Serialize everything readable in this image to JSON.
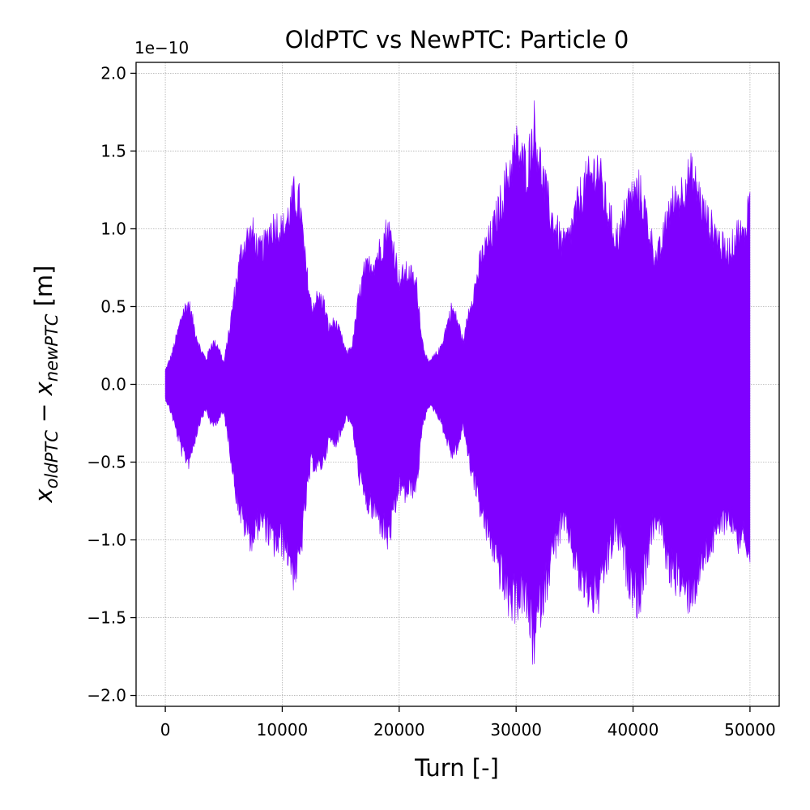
{
  "chart_data": {
    "type": "area",
    "title": "OldPTC vs NewPTC: Particle 0",
    "xlabel": "Turn [-]",
    "ylabel": {
      "var": "x",
      "sub1": "oldPTC",
      "minus": " − ",
      "sub2": "newPTC",
      "unit": " [m]"
    },
    "y_offset_label": "1e−10",
    "y_scale": 1e-10,
    "xlim": [
      -2500,
      52500
    ],
    "ylim": [
      -2.07,
      2.07
    ],
    "xticks": [
      0,
      10000,
      20000,
      30000,
      40000,
      50000
    ],
    "xtick_labels": [
      "0",
      "10000",
      "20000",
      "30000",
      "40000",
      "50000"
    ],
    "yticks": [
      -2.0,
      -1.5,
      -1.0,
      -0.5,
      0.0,
      0.5,
      1.0,
      1.5,
      2.0
    ],
    "ytick_labels": [
      "−2.0",
      "−1.5",
      "−1.0",
      "−0.5",
      "0.0",
      "0.5",
      "1.0",
      "1.5",
      "2.0"
    ],
    "grid": true,
    "series": [
      {
        "color": "#7f00ff",
        "envelope": {
          "turn": [
            0,
            500,
            1000,
            1500,
            2000,
            2500,
            3000,
            3500,
            4000,
            4500,
            5000,
            5500,
            6000,
            6500,
            7000,
            7500,
            8000,
            8500,
            9000,
            9500,
            10000,
            10500,
            11000,
            11500,
            12000,
            12500,
            13000,
            13500,
            14000,
            14500,
            15000,
            15500,
            16000,
            16500,
            17000,
            17500,
            18000,
            18500,
            19000,
            19500,
            20000,
            20500,
            21000,
            21500,
            22000,
            22500,
            23000,
            23500,
            24000,
            24500,
            25000,
            25500,
            26000,
            26500,
            27000,
            27500,
            28000,
            28500,
            29000,
            29500,
            30000,
            30500,
            31000,
            31500,
            32000,
            32500,
            33000,
            33500,
            34000,
            34500,
            35000,
            35500,
            36000,
            36500,
            37000,
            37500,
            38000,
            38500,
            39000,
            39500,
            40000,
            40500,
            41000,
            41500,
            42000,
            42500,
            43000,
            43500,
            44000,
            44500,
            45000,
            45500,
            46000,
            46500,
            47000,
            47500,
            48000,
            48500,
            49000,
            49500,
            50000
          ],
          "upper": [
            0.1,
            0.2,
            0.35,
            0.52,
            0.58,
            0.4,
            0.25,
            0.18,
            0.3,
            0.28,
            0.15,
            0.4,
            0.7,
            0.95,
            1.05,
            1.08,
            0.95,
            1.0,
            1.12,
            1.15,
            1.1,
            1.2,
            1.35,
            1.3,
            0.85,
            0.55,
            0.62,
            0.6,
            0.4,
            0.45,
            0.35,
            0.22,
            0.28,
            0.6,
            0.8,
            0.85,
            0.9,
            1.0,
            1.12,
            1.0,
            0.75,
            0.8,
            0.78,
            0.7,
            0.3,
            0.15,
            0.2,
            0.25,
            0.4,
            0.55,
            0.45,
            0.3,
            0.55,
            0.7,
            0.9,
            1.0,
            1.1,
            1.25,
            1.4,
            1.55,
            1.7,
            1.6,
            1.55,
            1.88,
            1.6,
            1.4,
            1.2,
            1.1,
            1.0,
            1.05,
            1.2,
            1.35,
            1.45,
            1.5,
            1.57,
            1.35,
            1.2,
            1.05,
            1.1,
            1.3,
            1.35,
            1.4,
            1.25,
            1.05,
            0.9,
            1.0,
            1.25,
            1.3,
            1.35,
            1.45,
            1.5,
            1.4,
            1.25,
            1.15,
            1.1,
            1.0,
            0.95,
            1.0,
            1.1,
            1.05,
            1.38
          ],
          "lower": [
            -0.1,
            -0.2,
            -0.35,
            -0.5,
            -0.55,
            -0.4,
            -0.25,
            -0.18,
            -0.3,
            -0.25,
            -0.2,
            -0.45,
            -0.75,
            -0.95,
            -1.05,
            -1.1,
            -0.98,
            -1.0,
            -1.1,
            -1.15,
            -1.12,
            -1.2,
            -1.35,
            -1.25,
            -0.85,
            -0.55,
            -0.6,
            -0.55,
            -0.4,
            -0.42,
            -0.35,
            -0.22,
            -0.3,
            -0.62,
            -0.8,
            -0.88,
            -0.92,
            -1.0,
            -1.1,
            -0.98,
            -0.72,
            -0.78,
            -0.75,
            -0.72,
            -0.3,
            -0.15,
            -0.18,
            -0.25,
            -0.38,
            -0.5,
            -0.45,
            -0.3,
            -0.55,
            -0.72,
            -0.9,
            -1.05,
            -1.15,
            -1.3,
            -1.45,
            -1.55,
            -1.55,
            -1.5,
            -1.6,
            -1.88,
            -1.6,
            -1.45,
            -1.25,
            -1.1,
            -1.0,
            -1.05,
            -1.25,
            -1.4,
            -1.45,
            -1.5,
            -1.52,
            -1.35,
            -1.2,
            -1.05,
            -1.15,
            -1.35,
            -1.45,
            -1.55,
            -1.35,
            -1.1,
            -0.95,
            -1.05,
            -1.3,
            -1.35,
            -1.4,
            -1.5,
            -1.48,
            -1.4,
            -1.25,
            -1.15,
            -1.1,
            -1.0,
            -0.95,
            -0.98,
            -1.1,
            -1.05,
            -1.38
          ]
        }
      }
    ]
  }
}
